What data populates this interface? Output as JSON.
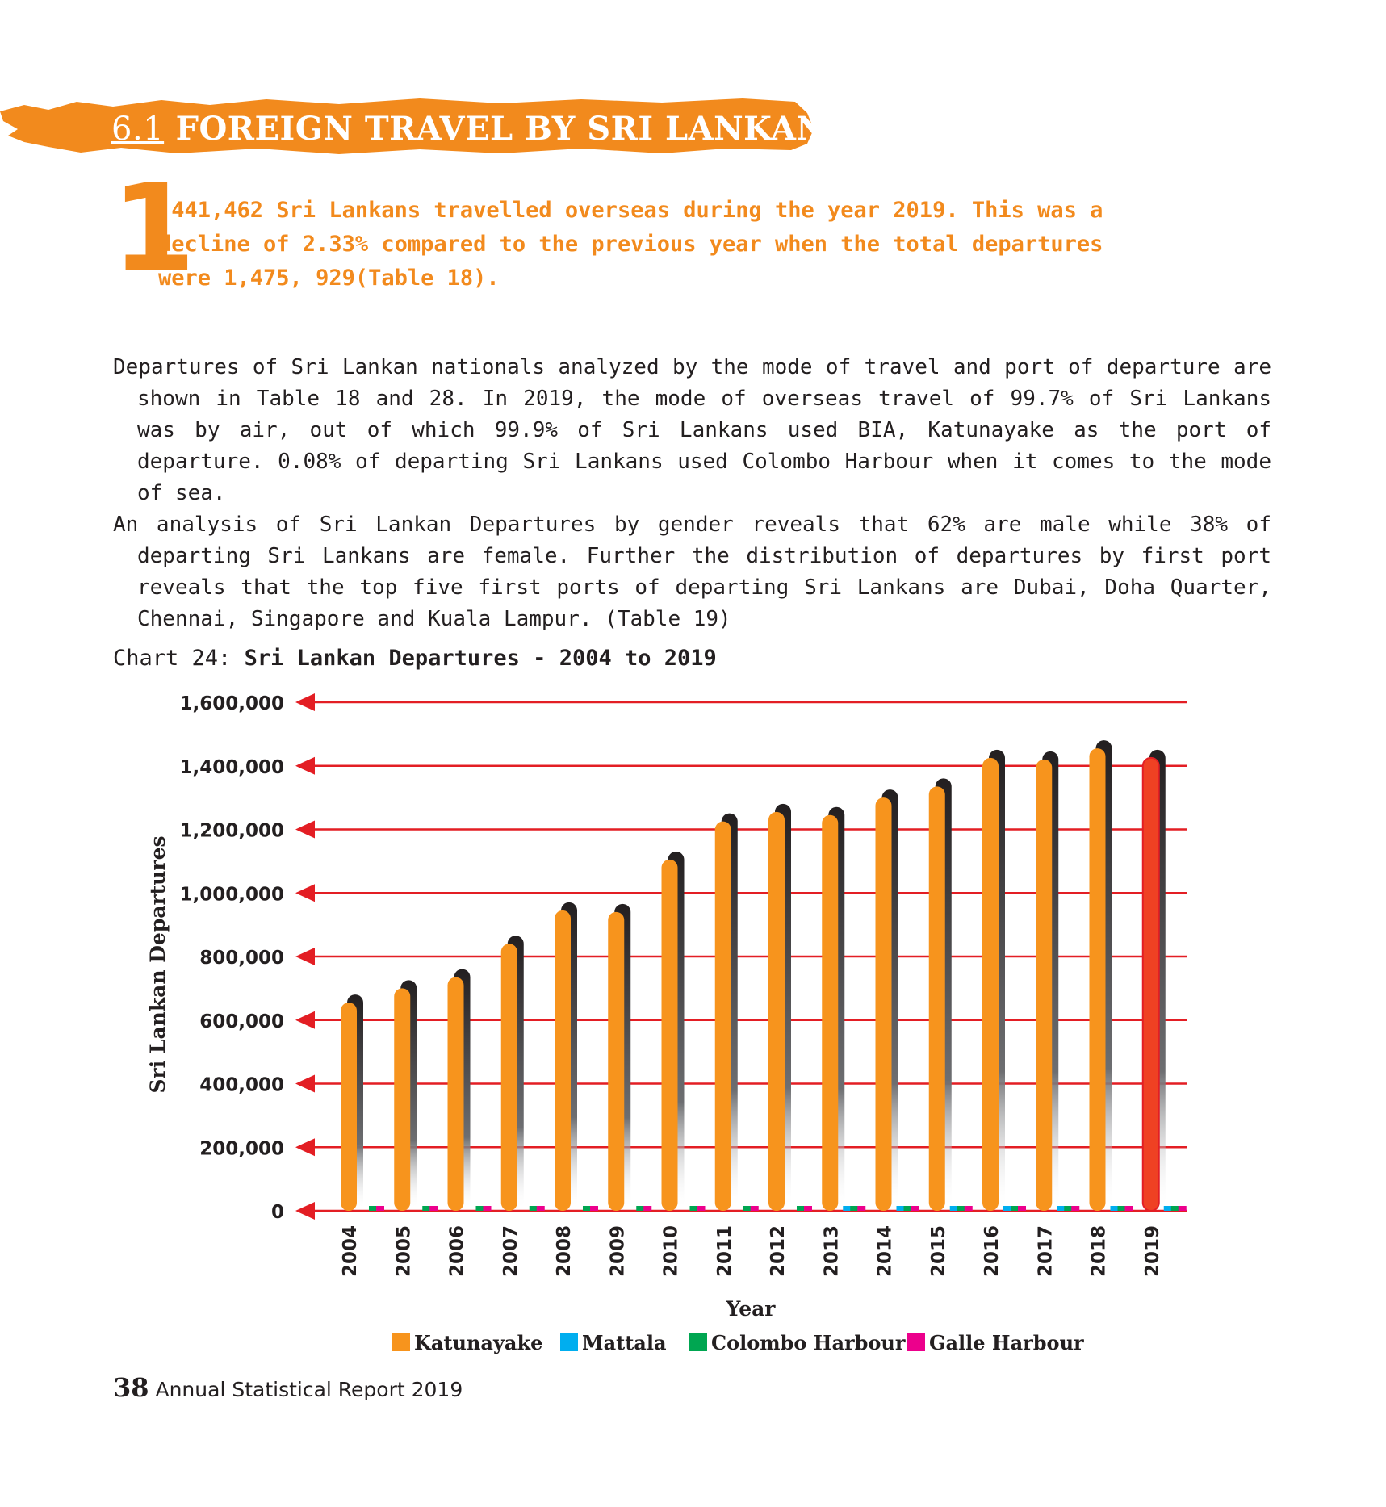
{
  "section": {
    "number": "6.1",
    "title": "FOREIGN TRAVEL BY SRI LANKANS",
    "color": "#f28a1d"
  },
  "intro": {
    "dropcap": "1",
    "lines": [
      ",441,462 Sri Lankans travelled overseas during the year 2019. This was a",
      "decline of 2.33% compared to the previous year when the total departures",
      "were 1,475, 929(Table 18)."
    ]
  },
  "paragraphs": [
    "Departures of Sri Lankan nationals analyzed by the mode of travel and port of departure are shown in Table 18 and 28. In 2019, the mode of overseas travel of 99.7% of Sri Lankans was by air, out of which 99.9% of Sri Lankans used BIA, Katunayake as the port of departure. 0.08% of departing Sri Lankans used Colombo Harbour when it comes to the mode of sea.",
    "An analysis of Sri Lankan Departures by gender reveals that 62% are male while 38% of departing Sri Lankans are female. Further the distribution of departures by first port reveals that the top five first ports of departing Sri Lankans are Dubai, Doha Quarter, Chennai, Singapore and Kuala Lampur. (Table 19)"
  ],
  "chart_caption": {
    "prefix": "Chart 24: ",
    "title": "Sri Lankan Departures - 2004 to 2019"
  },
  "chart_data": {
    "type": "bar",
    "title": "Sri Lankan Departures - 2004 to 2019",
    "xlabel": "Year",
    "ylabel": "Sri Lankan Departures",
    "ylim": [
      0,
      1600000
    ],
    "yticks": [
      0,
      200000,
      400000,
      600000,
      800000,
      1000000,
      1200000,
      1400000,
      1600000
    ],
    "ytick_labels": [
      "0",
      "200,000",
      "400,000",
      "600,000",
      "800,000",
      "1,000,000",
      "1,200,000",
      "1,400,000",
      "1,600,000"
    ],
    "grid": true,
    "legend_position": "bottom",
    "categories": [
      "2004",
      "2005",
      "2006",
      "2007",
      "2008",
      "2009",
      "2010",
      "2011",
      "2012",
      "2013",
      "2014",
      "2015",
      "2016",
      "2017",
      "2018",
      "2019"
    ],
    "series": [
      {
        "name": "Katunayake",
        "color": "#f7941d",
        "values": [
          655000,
          700000,
          735000,
          840000,
          945000,
          940000,
          1105000,
          1225000,
          1255000,
          1245000,
          1300000,
          1335000,
          1425000,
          1420000,
          1455000,
          1425000
        ]
      },
      {
        "name": "Mattala",
        "color": "#00aeef",
        "values": [
          0,
          0,
          0,
          0,
          0,
          0,
          0,
          0,
          0,
          2000,
          3000,
          2000,
          2000,
          2000,
          2000,
          1000
        ]
      },
      {
        "name": "Colombo Harbour",
        "color": "#00a651",
        "values": [
          1000,
          1000,
          1000,
          1000,
          1000,
          1000,
          1000,
          1000,
          1000,
          1000,
          1000,
          1000,
          1000,
          1000,
          1000,
          1000
        ]
      },
      {
        "name": "Galle Harbour",
        "color": "#ec008c",
        "values": [
          1000,
          1000,
          1000,
          1000,
          1000,
          1000,
          1000,
          1000,
          1000,
          1000,
          1000,
          1000,
          1000,
          1000,
          1000,
          1000
        ]
      }
    ],
    "highlight": {
      "category": "2019",
      "color": "#ef4123"
    },
    "grid_color": "#e31e24"
  },
  "footer": {
    "page_number": "38",
    "report_title": "Annual Statistical Report 2019"
  }
}
